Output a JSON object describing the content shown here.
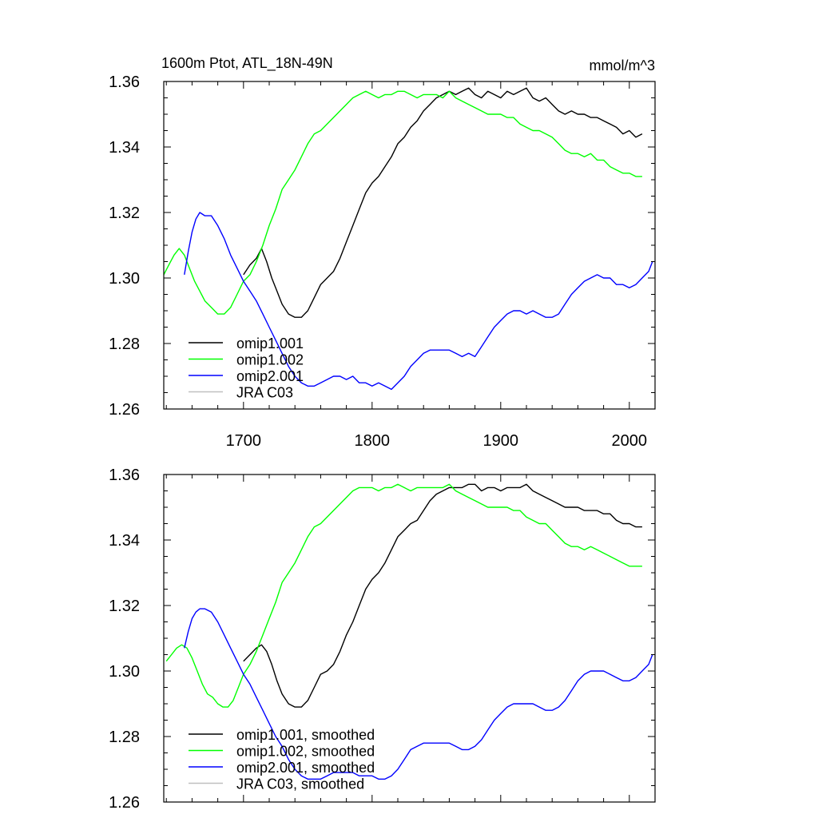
{
  "chart_data": [
    {
      "type": "line",
      "title": "1600m Ptot, ATL_18N-49N",
      "units": "mmol/m^3",
      "xlim": [
        1638,
        2020
      ],
      "ylim": [
        1.26,
        1.36
      ],
      "xticks": [
        1700,
        1800,
        1900,
        2000
      ],
      "xtick_labels": [
        "1700",
        "1800",
        "1900",
        "2000"
      ],
      "yticks": [
        1.26,
        1.28,
        1.3,
        1.32,
        1.34,
        1.36
      ],
      "ytick_labels": [
        "1.26",
        "1.28",
        "1.30",
        "1.32",
        "1.34",
        "1.36"
      ],
      "legend_position": "bottom-left",
      "series": [
        {
          "name": "omip1.001",
          "color": "#000000",
          "x": [
            1700,
            1705,
            1710,
            1714,
            1718,
            1722,
            1726,
            1730,
            1735,
            1740,
            1745,
            1750,
            1755,
            1760,
            1765,
            1770,
            1775,
            1780,
            1785,
            1790,
            1795,
            1800,
            1805,
            1810,
            1815,
            1820,
            1825,
            1830,
            1835,
            1840,
            1845,
            1850,
            1855,
            1860,
            1865,
            1870,
            1875,
            1880,
            1885,
            1890,
            1895,
            1900,
            1905,
            1910,
            1915,
            1920,
            1925,
            1930,
            1935,
            1940,
            1945,
            1950,
            1955,
            1960,
            1965,
            1970,
            1975,
            1980,
            1985,
            1990,
            1995,
            2000,
            2005,
            2010
          ],
          "y": [
            1.301,
            1.304,
            1.306,
            1.309,
            1.305,
            1.3,
            1.296,
            1.292,
            1.289,
            1.288,
            1.288,
            1.29,
            1.294,
            1.298,
            1.3,
            1.302,
            1.306,
            1.311,
            1.316,
            1.321,
            1.326,
            1.329,
            1.331,
            1.334,
            1.337,
            1.341,
            1.343,
            1.346,
            1.348,
            1.351,
            1.353,
            1.355,
            1.356,
            1.357,
            1.356,
            1.357,
            1.358,
            1.356,
            1.355,
            1.357,
            1.356,
            1.355,
            1.357,
            1.356,
            1.357,
            1.358,
            1.355,
            1.354,
            1.355,
            1.353,
            1.351,
            1.35,
            1.351,
            1.35,
            1.35,
            1.349,
            1.349,
            1.348,
            1.347,
            1.346,
            1.344,
            1.345,
            1.343,
            1.344
          ]
        },
        {
          "name": "omip1.002",
          "color": "#00ff00",
          "x": [
            1638,
            1642,
            1646,
            1650,
            1654,
            1658,
            1662,
            1666,
            1670,
            1675,
            1680,
            1685,
            1690,
            1695,
            1700,
            1705,
            1710,
            1715,
            1720,
            1725,
            1730,
            1735,
            1740,
            1745,
            1750,
            1755,
            1760,
            1765,
            1770,
            1775,
            1780,
            1785,
            1790,
            1795,
            1800,
            1805,
            1810,
            1815,
            1820,
            1825,
            1830,
            1835,
            1840,
            1845,
            1850,
            1855,
            1860,
            1865,
            1870,
            1875,
            1880,
            1885,
            1890,
            1895,
            1900,
            1905,
            1910,
            1915,
            1920,
            1925,
            1930,
            1935,
            1940,
            1945,
            1950,
            1955,
            1960,
            1965,
            1970,
            1975,
            1980,
            1985,
            1990,
            1995,
            2000,
            2005,
            2010
          ],
          "y": [
            1.301,
            1.304,
            1.307,
            1.309,
            1.307,
            1.303,
            1.299,
            1.296,
            1.293,
            1.291,
            1.289,
            1.289,
            1.291,
            1.295,
            1.299,
            1.301,
            1.305,
            1.31,
            1.316,
            1.321,
            1.327,
            1.33,
            1.333,
            1.337,
            1.341,
            1.344,
            1.345,
            1.347,
            1.349,
            1.351,
            1.353,
            1.355,
            1.356,
            1.357,
            1.356,
            1.355,
            1.356,
            1.356,
            1.357,
            1.357,
            1.356,
            1.355,
            1.356,
            1.356,
            1.356,
            1.355,
            1.357,
            1.355,
            1.354,
            1.353,
            1.352,
            1.351,
            1.35,
            1.35,
            1.35,
            1.349,
            1.349,
            1.347,
            1.346,
            1.345,
            1.345,
            1.344,
            1.343,
            1.341,
            1.339,
            1.338,
            1.338,
            1.337,
            1.338,
            1.336,
            1.336,
            1.334,
            1.333,
            1.332,
            1.332,
            1.331,
            1.331
          ]
        },
        {
          "name": "omip2.001",
          "color": "#0000ff",
          "x": [
            1654,
            1657,
            1660,
            1663,
            1666,
            1670,
            1675,
            1680,
            1685,
            1690,
            1695,
            1700,
            1705,
            1710,
            1715,
            1720,
            1725,
            1730,
            1735,
            1740,
            1745,
            1750,
            1755,
            1760,
            1765,
            1770,
            1775,
            1780,
            1785,
            1790,
            1795,
            1800,
            1805,
            1810,
            1815,
            1820,
            1825,
            1830,
            1835,
            1840,
            1845,
            1850,
            1855,
            1860,
            1865,
            1870,
            1875,
            1880,
            1885,
            1890,
            1895,
            1900,
            1905,
            1910,
            1915,
            1920,
            1925,
            1930,
            1935,
            1940,
            1945,
            1950,
            1955,
            1960,
            1965,
            1970,
            1975,
            1980,
            1985,
            1990,
            1995,
            2000,
            2005,
            2010,
            2015,
            2018
          ],
          "y": [
            1.301,
            1.308,
            1.314,
            1.318,
            1.32,
            1.319,
            1.319,
            1.316,
            1.312,
            1.307,
            1.303,
            1.299,
            1.296,
            1.293,
            1.289,
            1.285,
            1.281,
            1.277,
            1.273,
            1.27,
            1.268,
            1.267,
            1.267,
            1.268,
            1.269,
            1.27,
            1.27,
            1.269,
            1.27,
            1.268,
            1.268,
            1.267,
            1.268,
            1.267,
            1.266,
            1.268,
            1.27,
            1.273,
            1.275,
            1.277,
            1.278,
            1.278,
            1.278,
            1.278,
            1.277,
            1.276,
            1.277,
            1.276,
            1.279,
            1.282,
            1.285,
            1.287,
            1.289,
            1.29,
            1.29,
            1.289,
            1.29,
            1.289,
            1.288,
            1.288,
            1.289,
            1.292,
            1.295,
            1.297,
            1.299,
            1.3,
            1.301,
            1.3,
            1.3,
            1.298,
            1.298,
            1.297,
            1.298,
            1.3,
            1.302,
            1.305
          ]
        },
        {
          "name": "JRA C03",
          "color": "#c0c0c0",
          "x": [],
          "y": []
        }
      ]
    },
    {
      "type": "line",
      "title": "",
      "xlim": [
        1638,
        2020
      ],
      "ylim": [
        1.26,
        1.36
      ],
      "yticks": [
        1.26,
        1.28,
        1.3,
        1.32,
        1.34,
        1.36
      ],
      "ytick_labels": [
        "1.26",
        "1.28",
        "1.30",
        "1.32",
        "1.34",
        "1.36"
      ],
      "xticks": [
        1700,
        1800,
        1900,
        2000
      ],
      "legend_position": "bottom-left",
      "series": [
        {
          "name": "omip1.001, smoothed",
          "color": "#000000",
          "x": [
            1700,
            1705,
            1710,
            1714,
            1718,
            1722,
            1726,
            1730,
            1735,
            1740,
            1745,
            1750,
            1755,
            1760,
            1765,
            1770,
            1775,
            1780,
            1785,
            1790,
            1795,
            1800,
            1805,
            1810,
            1815,
            1820,
            1825,
            1830,
            1835,
            1840,
            1845,
            1850,
            1855,
            1860,
            1865,
            1870,
            1875,
            1880,
            1885,
            1890,
            1895,
            1900,
            1905,
            1910,
            1915,
            1920,
            1925,
            1930,
            1935,
            1940,
            1945,
            1950,
            1955,
            1960,
            1965,
            1970,
            1975,
            1980,
            1985,
            1990,
            1995,
            2000,
            2005,
            2010
          ],
          "y": [
            1.303,
            1.305,
            1.307,
            1.308,
            1.306,
            1.302,
            1.297,
            1.293,
            1.29,
            1.289,
            1.289,
            1.291,
            1.295,
            1.299,
            1.3,
            1.302,
            1.306,
            1.311,
            1.315,
            1.32,
            1.325,
            1.328,
            1.33,
            1.333,
            1.337,
            1.341,
            1.343,
            1.345,
            1.346,
            1.349,
            1.352,
            1.354,
            1.355,
            1.356,
            1.356,
            1.356,
            1.357,
            1.357,
            1.355,
            1.356,
            1.356,
            1.355,
            1.356,
            1.356,
            1.356,
            1.357,
            1.355,
            1.354,
            1.353,
            1.352,
            1.351,
            1.35,
            1.35,
            1.35,
            1.349,
            1.349,
            1.349,
            1.348,
            1.348,
            1.346,
            1.345,
            1.345,
            1.344,
            1.344
          ]
        },
        {
          "name": "omip1.002, smoothed",
          "color": "#00ff00",
          "x": [
            1640,
            1644,
            1648,
            1652,
            1656,
            1660,
            1664,
            1668,
            1672,
            1676,
            1680,
            1684,
            1688,
            1692,
            1696,
            1700,
            1705,
            1710,
            1715,
            1720,
            1725,
            1730,
            1735,
            1740,
            1745,
            1750,
            1755,
            1760,
            1765,
            1770,
            1775,
            1780,
            1785,
            1790,
            1795,
            1800,
            1805,
            1810,
            1815,
            1820,
            1825,
            1830,
            1835,
            1840,
            1845,
            1850,
            1855,
            1860,
            1865,
            1870,
            1875,
            1880,
            1885,
            1890,
            1895,
            1900,
            1905,
            1910,
            1915,
            1920,
            1925,
            1930,
            1935,
            1940,
            1945,
            1950,
            1955,
            1960,
            1965,
            1970,
            1975,
            1980,
            1985,
            1990,
            1995,
            2000,
            2005,
            2010
          ],
          "y": [
            1.303,
            1.305,
            1.307,
            1.308,
            1.307,
            1.304,
            1.3,
            1.296,
            1.293,
            1.292,
            1.29,
            1.289,
            1.289,
            1.291,
            1.295,
            1.299,
            1.302,
            1.306,
            1.311,
            1.316,
            1.321,
            1.327,
            1.33,
            1.333,
            1.337,
            1.341,
            1.344,
            1.345,
            1.347,
            1.349,
            1.351,
            1.353,
            1.355,
            1.356,
            1.356,
            1.356,
            1.355,
            1.356,
            1.356,
            1.357,
            1.356,
            1.355,
            1.356,
            1.356,
            1.356,
            1.356,
            1.356,
            1.357,
            1.355,
            1.354,
            1.353,
            1.352,
            1.351,
            1.35,
            1.35,
            1.35,
            1.35,
            1.349,
            1.349,
            1.347,
            1.346,
            1.345,
            1.345,
            1.343,
            1.341,
            1.339,
            1.338,
            1.338,
            1.337,
            1.338,
            1.337,
            1.336,
            1.335,
            1.334,
            1.333,
            1.332,
            1.332,
            1.332
          ]
        },
        {
          "name": "omip2.001, smoothed",
          "color": "#0000ff",
          "x": [
            1654,
            1657,
            1660,
            1663,
            1666,
            1670,
            1675,
            1680,
            1685,
            1690,
            1695,
            1700,
            1705,
            1710,
            1715,
            1720,
            1725,
            1730,
            1735,
            1740,
            1745,
            1750,
            1755,
            1760,
            1765,
            1770,
            1775,
            1780,
            1785,
            1790,
            1795,
            1800,
            1805,
            1810,
            1815,
            1820,
            1825,
            1830,
            1835,
            1840,
            1845,
            1850,
            1855,
            1860,
            1865,
            1870,
            1875,
            1880,
            1885,
            1890,
            1895,
            1900,
            1905,
            1910,
            1915,
            1920,
            1925,
            1930,
            1935,
            1940,
            1945,
            1950,
            1955,
            1960,
            1965,
            1970,
            1975,
            1980,
            1985,
            1990,
            1995,
            2000,
            2005,
            2010,
            2015,
            2018
          ],
          "y": [
            1.307,
            1.312,
            1.316,
            1.318,
            1.319,
            1.319,
            1.318,
            1.315,
            1.311,
            1.307,
            1.303,
            1.299,
            1.296,
            1.292,
            1.288,
            1.284,
            1.28,
            1.277,
            1.273,
            1.27,
            1.268,
            1.267,
            1.267,
            1.267,
            1.268,
            1.269,
            1.269,
            1.269,
            1.269,
            1.268,
            1.268,
            1.268,
            1.267,
            1.267,
            1.268,
            1.27,
            1.273,
            1.276,
            1.277,
            1.278,
            1.278,
            1.278,
            1.278,
            1.278,
            1.277,
            1.276,
            1.276,
            1.277,
            1.279,
            1.282,
            1.285,
            1.287,
            1.289,
            1.29,
            1.29,
            1.29,
            1.29,
            1.289,
            1.288,
            1.288,
            1.289,
            1.291,
            1.294,
            1.297,
            1.299,
            1.3,
            1.3,
            1.3,
            1.299,
            1.298,
            1.297,
            1.297,
            1.298,
            1.3,
            1.302,
            1.305
          ]
        },
        {
          "name": "JRA C03, smoothed",
          "color": "#c0c0c0",
          "x": [],
          "y": []
        }
      ]
    }
  ]
}
